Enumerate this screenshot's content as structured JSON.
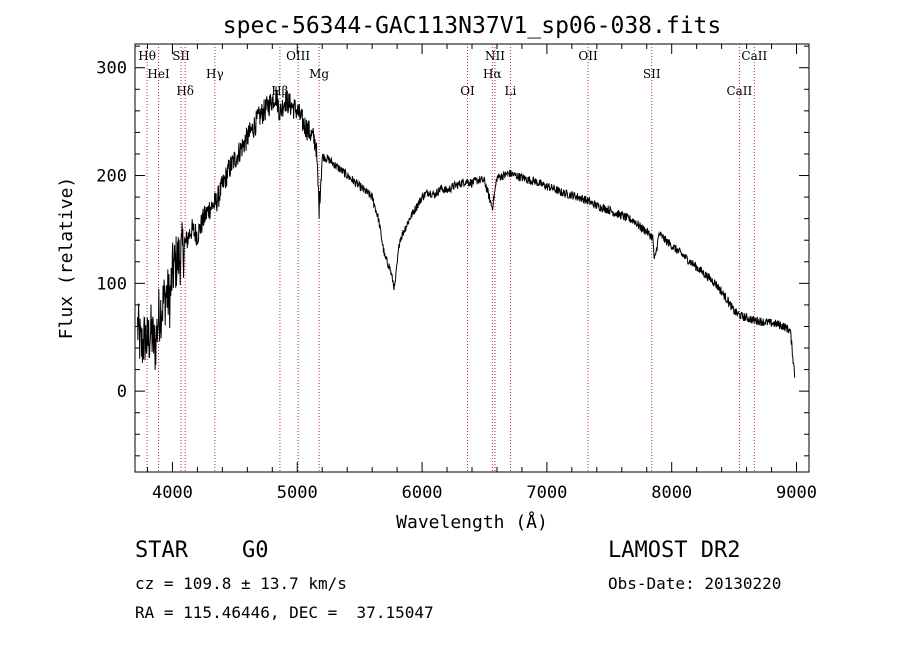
{
  "chart_data": {
    "type": "line",
    "title": "spec-56344-GAC113N37V1_sp06-038.fits",
    "xlabel": "Wavelength (Å)",
    "ylabel": "Flux (relative)",
    "xlim": [
      3700,
      9100
    ],
    "ylim": [
      -75,
      322
    ],
    "x_ticks": [
      4000,
      5000,
      6000,
      7000,
      8000,
      9000
    ],
    "y_ticks": [
      0,
      100,
      200,
      300
    ],
    "grid": false,
    "series": [
      {
        "values_x": [
          3720,
          3750,
          3780,
          3800,
          3830,
          3860,
          3890,
          3920,
          3950,
          3980,
          4000,
          4030,
          4060,
          4100,
          4150,
          4200,
          4250,
          4300,
          4350,
          4400,
          4450,
          4500,
          4550,
          4600,
          4650,
          4700,
          4750,
          4800,
          4830,
          4861,
          4900,
          4950,
          5000,
          5050,
          5100,
          5150,
          5175,
          5200,
          5250,
          5300,
          5350,
          5400,
          5450,
          5500,
          5550,
          5600,
          5650,
          5700,
          5740,
          5780,
          5820,
          5860,
          5900,
          5950,
          6000,
          6050,
          6100,
          6150,
          6200,
          6250,
          6300,
          6350,
          6400,
          6450,
          6500,
          6563,
          6600,
          6650,
          6700,
          6750,
          6800,
          6850,
          6900,
          6950,
          7000,
          7050,
          7100,
          7150,
          7200,
          7250,
          7300,
          7350,
          7400,
          7450,
          7500,
          7550,
          7600,
          7650,
          7700,
          7750,
          7800,
          7850,
          7860,
          7900,
          7950,
          8000,
          8050,
          8100,
          8150,
          8200,
          8250,
          8300,
          8350,
          8400,
          8450,
          8500,
          8550,
          8600,
          8650,
          8700,
          8750,
          8800,
          8850,
          8900,
          8950,
          8990
        ],
        "values_y": [
          60,
          40,
          50,
          45,
          55,
          40,
          70,
          80,
          90,
          85,
          110,
          120,
          125,
          135,
          150,
          145,
          160,
          170,
          175,
          190,
          205,
          215,
          225,
          235,
          245,
          255,
          262,
          270,
          275,
          258,
          270,
          265,
          260,
          248,
          240,
          230,
          170,
          218,
          215,
          210,
          205,
          200,
          195,
          190,
          185,
          180,
          160,
          125,
          115,
          95,
          140,
          150,
          160,
          170,
          180,
          185,
          182,
          188,
          186,
          190,
          192,
          195,
          193,
          196,
          195,
          170,
          198,
          200,
          202,
          200,
          198,
          196,
          195,
          192,
          190,
          188,
          185,
          183,
          182,
          180,
          178,
          175,
          172,
          170,
          168,
          165,
          163,
          160,
          158,
          152,
          148,
          142,
          120,
          146,
          140,
          135,
          130,
          125,
          120,
          115,
          110,
          105,
          100,
          92,
          84,
          74,
          70,
          68,
          66,
          65,
          64,
          63,
          62,
          60,
          56,
          10
        ]
      }
    ],
    "lines": [
      {
        "label": "Hθ",
        "x": 3797
      },
      {
        "label": "HeI",
        "x": 3889
      },
      {
        "label": "Hδ",
        "x": 4102
      },
      {
        "label": "SII",
        "x": 4069
      },
      {
        "label": "Hγ",
        "x": 4340
      },
      {
        "label": "Hβ",
        "x": 4861
      },
      {
        "label": "OIII",
        "x": 5007
      },
      {
        "label": "Mg",
        "x": 5175
      },
      {
        "label": "OI",
        "x": 6364
      },
      {
        "label": "NII",
        "x": 6584
      },
      {
        "label": "Hα",
        "x": 6563
      },
      {
        "label": "Li",
        "x": 6708
      },
      {
        "label": "OII",
        "x": 7330
      },
      {
        "label": "SII",
        "x": 7840
      },
      {
        "label": "CaII",
        "x": 8542
      },
      {
        "label": "CaII",
        "x": 8662
      }
    ]
  },
  "info": {
    "class": "STAR",
    "subclass": "G0",
    "survey": "LAMOST DR2",
    "cz": "cz = 109.8 ± 13.7 km/s",
    "obs_date": "Obs-Date: 20130220",
    "coords": "RA = 115.46446, DEC =  37.15047"
  }
}
